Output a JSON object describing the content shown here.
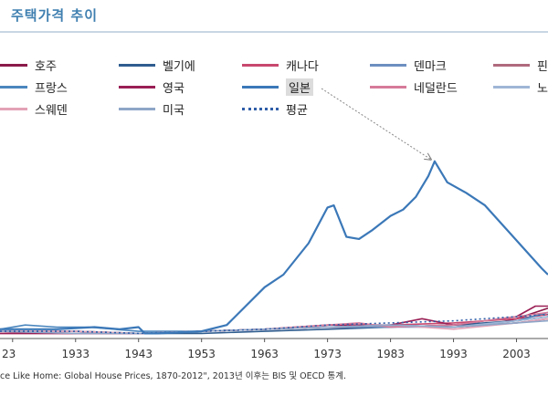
{
  "page": {
    "title": "주택가격 추이",
    "source": "ce Like Home: Global House Prices, 1870-2012\", 2013년 이후는 BIS 및 OECD 통계."
  },
  "chart_data": {
    "type": "line",
    "title": "주택가격 추이",
    "xlabel": "",
    "ylabel": "",
    "x_ticks": [
      "23",
      "1933",
      "1943",
      "1953",
      "1963",
      "1973",
      "1983",
      "1993",
      "2003"
    ],
    "xlim": [
      1921,
      2008
    ],
    "ylim": [
      0,
      1
    ],
    "grid": false,
    "legend_position": "top",
    "annotation": {
      "from_series": "일본",
      "to_x": 1990,
      "description": "arrow"
    },
    "series": [
      {
        "name": "호주",
        "color": "#8b1a4a",
        "style": "solid",
        "x": [
          1921,
          1933,
          1943,
          1953,
          1963,
          1973,
          1983,
          1993,
          2000,
          2003,
          2008
        ],
        "values": [
          0.03,
          0.03,
          0.02,
          0.03,
          0.04,
          0.05,
          0.05,
          0.06,
          0.07,
          0.09,
          0.14
        ]
      },
      {
        "name": "벨기에",
        "color": "#2f5d8f",
        "style": "solid",
        "x": [
          1921,
          1933,
          1943,
          1953,
          1963,
          1973,
          1983,
          1993,
          2003,
          2008
        ],
        "values": [
          0.03,
          0.03,
          0.02,
          0.02,
          0.03,
          0.04,
          0.05,
          0.06,
          0.08,
          0.1
        ]
      },
      {
        "name": "캐나다",
        "color": "#c8486e",
        "style": "solid",
        "x": [
          1921,
          1933,
          1943,
          1953,
          1963,
          1973,
          1983,
          1993,
          2003,
          2008
        ],
        "values": [
          0.02,
          0.02,
          0.02,
          0.03,
          0.04,
          0.05,
          0.06,
          0.07,
          0.09,
          0.11
        ]
      },
      {
        "name": "덴마크",
        "color": "#6d8fc0",
        "style": "solid",
        "x": [
          1921,
          1933,
          1943,
          1953,
          1963,
          1973,
          1983,
          1993,
          2003,
          2008
        ],
        "values": [
          0.03,
          0.03,
          0.02,
          0.03,
          0.04,
          0.05,
          0.05,
          0.05,
          0.07,
          0.09
        ]
      },
      {
        "name": "핀",
        "color": "#b06a7e",
        "style": "solid",
        "x": [
          1921,
          1933,
          1943,
          1953,
          1963,
          1973,
          1983,
          1993,
          2003,
          2008
        ],
        "values": [
          0.03,
          0.02,
          0.02,
          0.03,
          0.04,
          0.05,
          0.06,
          0.05,
          0.07,
          0.09
        ]
      },
      {
        "name": "프랑스",
        "color": "#4a86be",
        "style": "solid",
        "x": [
          1921,
          1925,
          1930,
          1935,
          1943,
          1953,
          1963,
          1973,
          1983,
          1993,
          2003,
          2008
        ],
        "values": [
          0.04,
          0.06,
          0.05,
          0.05,
          0.03,
          0.03,
          0.04,
          0.05,
          0.06,
          0.05,
          0.08,
          0.12
        ]
      },
      {
        "name": "영국",
        "color": "#9a1f55",
        "style": "solid",
        "x": [
          1921,
          1933,
          1943,
          1953,
          1963,
          1973,
          1983,
          1988,
          1993,
          2003,
          2006,
          2008
        ],
        "values": [
          0.02,
          0.02,
          0.02,
          0.03,
          0.04,
          0.06,
          0.06,
          0.09,
          0.06,
          0.1,
          0.15,
          0.15
        ]
      },
      {
        "name": "일본",
        "color": "#3b78b8",
        "style": "solid",
        "x": [
          1921,
          1930,
          1936,
          1940,
          1943,
          1944,
          1946,
          1953,
          1957,
          1960,
          1963,
          1966,
          1970,
          1973,
          1974,
          1976,
          1978,
          1980,
          1983,
          1985,
          1987,
          1989,
          1990,
          1992,
          1995,
          1998,
          2001,
          2004,
          2007,
          2008
        ],
        "values": [
          0.04,
          0.04,
          0.05,
          0.04,
          0.05,
          0.02,
          0.02,
          0.03,
          0.06,
          0.15,
          0.24,
          0.3,
          0.45,
          0.62,
          0.63,
          0.48,
          0.47,
          0.51,
          0.58,
          0.61,
          0.67,
          0.77,
          0.84,
          0.74,
          0.69,
          0.63,
          0.53,
          0.43,
          0.33,
          0.3
        ]
      },
      {
        "name": "네덜란드",
        "color": "#d67a99",
        "style": "solid",
        "x": [
          1921,
          1933,
          1943,
          1953,
          1963,
          1973,
          1978,
          1983,
          1993,
          2003,
          2008
        ],
        "values": [
          0.03,
          0.02,
          0.02,
          0.03,
          0.04,
          0.06,
          0.07,
          0.05,
          0.06,
          0.1,
          0.12
        ]
      },
      {
        "name": "노",
        "color": "#9fb6d6",
        "style": "solid",
        "x": [
          1921,
          1933,
          1943,
          1953,
          1963,
          1973,
          1983,
          1993,
          2003,
          2008
        ],
        "values": [
          0.03,
          0.03,
          0.02,
          0.03,
          0.04,
          0.05,
          0.06,
          0.05,
          0.08,
          0.1
        ]
      },
      {
        "name": "스웨덴",
        "color": "#e3a2b7",
        "style": "solid",
        "x": [
          1921,
          1933,
          1943,
          1953,
          1963,
          1973,
          1983,
          1993,
          2003,
          2008
        ],
        "values": [
          0.03,
          0.03,
          0.02,
          0.03,
          0.04,
          0.05,
          0.06,
          0.04,
          0.07,
          0.09
        ]
      },
      {
        "name": "미국",
        "color": "#8ea6c8",
        "style": "solid",
        "x": [
          1921,
          1933,
          1943,
          1953,
          1963,
          1973,
          1983,
          1993,
          2003,
          2008
        ],
        "values": [
          0.03,
          0.02,
          0.02,
          0.03,
          0.04,
          0.05,
          0.06,
          0.05,
          0.07,
          0.08
        ]
      },
      {
        "name": "평균",
        "color": "#2f5ea8",
        "style": "dotted",
        "x": [
          1921,
          1933,
          1943,
          1953,
          1963,
          1973,
          1983,
          1993,
          2003,
          2008
        ],
        "values": [
          0.03,
          0.03,
          0.02,
          0.03,
          0.04,
          0.06,
          0.07,
          0.08,
          0.1,
          0.11
        ]
      }
    ]
  }
}
